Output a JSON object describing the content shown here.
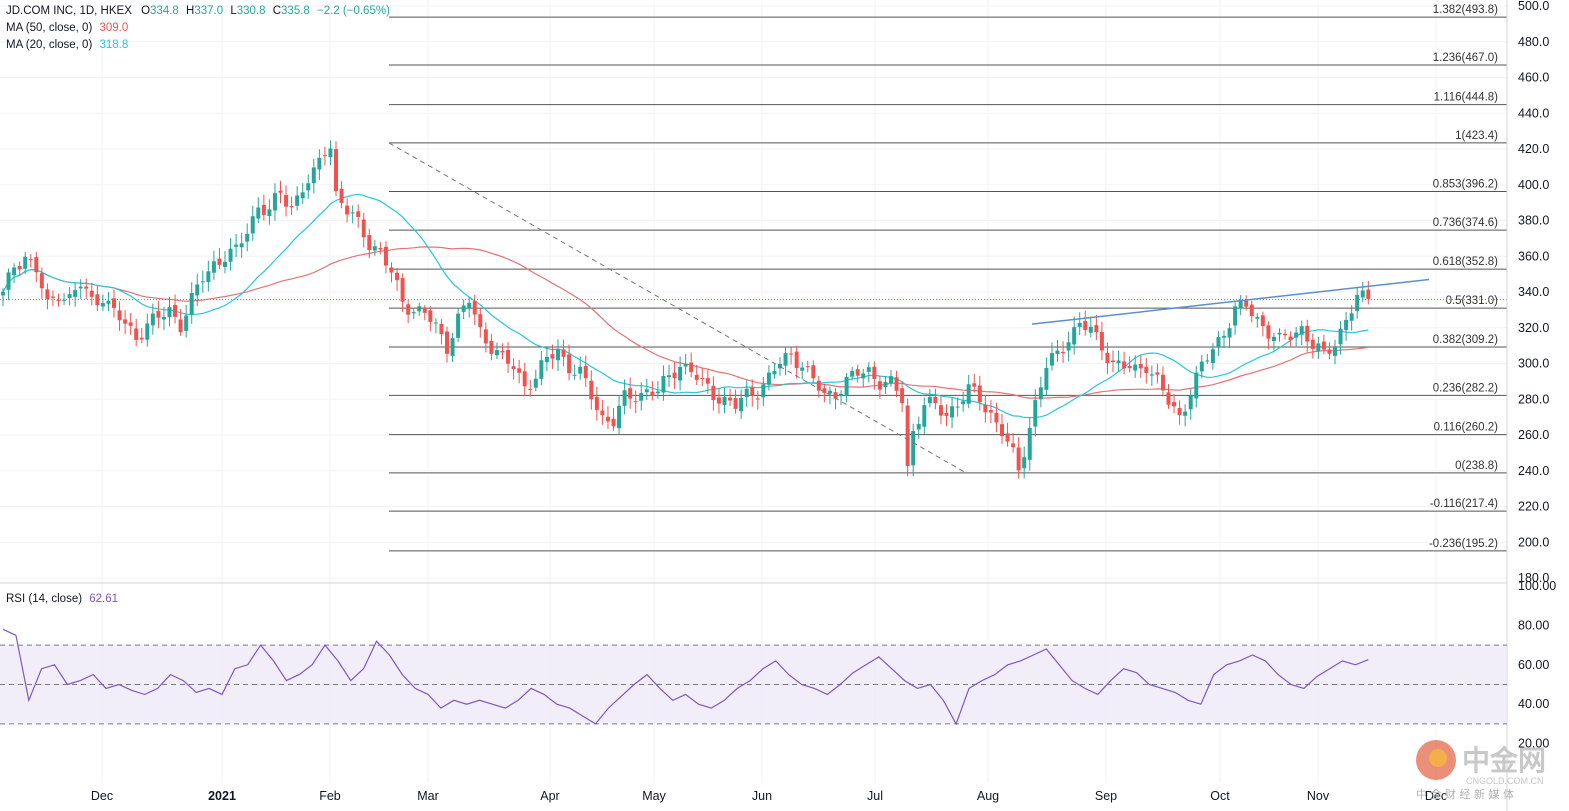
{
  "header": {
    "symbol": "JD.COM INC, 1D, HKEX",
    "ohlc": {
      "o_label": "O",
      "o": "334.8",
      "h_label": "H",
      "h": "337.0",
      "l_label": "L",
      "l": "330.8",
      "c_label": "C",
      "c": "335.8",
      "change": "−2.2 (−0.65%)"
    },
    "ma50": {
      "label": "MA (50, close, 0)",
      "value": "309.0"
    },
    "ma20": {
      "label": "MA (20, close, 0)",
      "value": "318.8"
    },
    "rsi": {
      "label": "RSI (14, close)",
      "value": "62.61"
    }
  },
  "colors": {
    "up": "#26a69a",
    "down": "#ef5350",
    "ma50": "#e57373",
    "ma20": "#26c6da",
    "rsi": "#7e57c2",
    "rsi_band": "#ede7f6",
    "trendline": "#5b8fd1",
    "fib": "#555555",
    "grid": "#f0f3fa",
    "dotted_price": "#5b8fd1"
  },
  "watermark": {
    "brand": "中金网",
    "site": "CNGOLD.COM.CN",
    "tagline": "中 金 财 经 新 媒 体"
  },
  "chart_data": [
    {
      "type": "candlestick",
      "title": "JD.COM INC, 1D, HKEX",
      "price_axis": {
        "ylim": [
          180,
          500
        ],
        "ticks": [
          "180.0",
          "200.0",
          "220.0",
          "240.0",
          "260.0",
          "280.0",
          "300.0",
          "320.0",
          "340.0",
          "360.0",
          "380.0",
          "400.0",
          "420.0",
          "440.0",
          "460.0",
          "480.0",
          "500.0"
        ]
      },
      "time_axis": {
        "labels": [
          "Dec",
          "2021",
          "Feb",
          "Mar",
          "Apr",
          "May",
          "Jun",
          "Jul",
          "Aug",
          "Sep",
          "Oct",
          "Nov",
          "Dec"
        ]
      },
      "fibonacci": [
        {
          "label": "1.382(493.8)",
          "value": 493.8
        },
        {
          "label": "1.236(467.0)",
          "value": 467.0
        },
        {
          "label": "1.116(444.8)",
          "value": 444.8
        },
        {
          "label": "1(423.4)",
          "value": 423.4
        },
        {
          "label": "0.853(396.2)",
          "value": 396.2
        },
        {
          "label": "0.736(374.6)",
          "value": 374.6
        },
        {
          "label": "0.618(352.8)",
          "value": 352.8
        },
        {
          "label": "0.5(331.0)",
          "value": 331.0
        },
        {
          "label": "0.382(309.2)",
          "value": 309.2
        },
        {
          "label": "0.236(282.2)",
          "value": 282.2
        },
        {
          "label": "0.116(260.2)",
          "value": 260.2
        },
        {
          "label": "0(238.8)",
          "value": 238.8
        },
        {
          "label": "-0.116(217.4)",
          "value": 217.4
        },
        {
          "label": "-0.236(195.2)",
          "value": 195.2
        }
      ],
      "last_close": 335.8,
      "high_swing": {
        "label": "Feb peak",
        "value": 423.4
      },
      "low_swing": {
        "label": "Jul low",
        "value": 238.8
      },
      "trendline": {
        "from_value": 322.0,
        "to_value": 347.0,
        "period": "mid Aug to Nov end"
      },
      "series": [
        {
          "name": "MA (50, close, 0)",
          "last": 309.0
        },
        {
          "name": "MA (20, close, 0)",
          "last": 318.8
        }
      ],
      "price_path": [
        [
          0,
          338
        ],
        [
          2,
          355
        ],
        [
          4,
          360
        ],
        [
          6,
          352
        ],
        [
          8,
          332
        ],
        [
          10,
          340
        ],
        [
          12,
          336
        ],
        [
          14,
          344
        ],
        [
          16,
          335
        ],
        [
          18,
          338
        ],
        [
          20,
          328
        ],
        [
          22,
          322
        ],
        [
          24,
          315
        ],
        [
          26,
          322
        ],
        [
          28,
          325
        ],
        [
          30,
          330
        ],
        [
          32,
          322
        ],
        [
          34,
          335
        ],
        [
          36,
          348
        ],
        [
          38,
          356
        ],
        [
          40,
          360
        ],
        [
          42,
          362
        ],
        [
          44,
          375
        ],
        [
          46,
          388
        ],
        [
          48,
          385
        ],
        [
          50,
          395
        ],
        [
          52,
          388
        ],
        [
          54,
          398
        ],
        [
          56,
          405
        ],
        [
          58,
          420
        ],
        [
          59,
          423
        ],
        [
          60,
          395
        ],
        [
          62,
          385
        ],
        [
          64,
          378
        ],
        [
          66,
          368
        ],
        [
          68,
          362
        ],
        [
          70,
          350
        ],
        [
          72,
          335
        ],
        [
          74,
          330
        ],
        [
          76,
          328
        ],
        [
          78,
          320
        ],
        [
          80,
          310
        ],
        [
          82,
          325
        ],
        [
          84,
          335
        ],
        [
          86,
          318
        ],
        [
          88,
          310
        ],
        [
          90,
          302
        ],
        [
          92,
          298
        ],
        [
          94,
          288
        ],
        [
          96,
          292
        ],
        [
          98,
          302
        ],
        [
          100,
          308
        ],
        [
          102,
          298
        ],
        [
          104,
          294
        ],
        [
          106,
          282
        ],
        [
          108,
          270
        ],
        [
          110,
          268
        ],
        [
          112,
          280
        ],
        [
          114,
          282
        ],
        [
          116,
          285
        ],
        [
          118,
          284
        ],
        [
          120,
          292
        ],
        [
          122,
          300
        ],
        [
          124,
          296
        ],
        [
          126,
          288
        ],
        [
          128,
          283
        ],
        [
          130,
          280
        ],
        [
          132,
          276
        ],
        [
          134,
          282
        ],
        [
          136,
          285
        ],
        [
          138,
          292
        ],
        [
          140,
          300
        ],
        [
          142,
          305
        ],
        [
          144,
          300
        ],
        [
          146,
          290
        ],
        [
          148,
          282
        ],
        [
          150,
          284
        ],
        [
          152,
          290
        ],
        [
          154,
          294
        ],
        [
          156,
          296
        ],
        [
          158,
          290
        ],
        [
          160,
          288
        ],
        [
          162,
          280
        ],
        [
          163,
          242
        ],
        [
          164,
          262
        ],
        [
          166,
          278
        ],
        [
          168,
          275
        ],
        [
          170,
          272
        ],
        [
          172,
          278
        ],
        [
          174,
          285
        ],
        [
          176,
          280
        ],
        [
          178,
          272
        ],
        [
          180,
          262
        ],
        [
          182,
          248
        ],
        [
          183,
          240
        ],
        [
          184,
          252
        ],
        [
          186,
          278
        ],
        [
          188,
          298
        ],
        [
          190,
          305
        ],
        [
          192,
          315
        ],
        [
          194,
          322
        ],
        [
          196,
          318
        ],
        [
          198,
          310
        ],
        [
          200,
          300
        ],
        [
          202,
          298
        ],
        [
          204,
          296
        ],
        [
          206,
          300
        ],
        [
          208,
          290
        ],
        [
          210,
          278
        ],
        [
          212,
          270
        ],
        [
          214,
          285
        ],
        [
          216,
          298
        ],
        [
          218,
          308
        ],
        [
          220,
          318
        ],
        [
          222,
          330
        ],
        [
          224,
          332
        ],
        [
          226,
          325
        ],
        [
          228,
          318
        ],
        [
          230,
          312
        ],
        [
          232,
          316
        ],
        [
          234,
          320
        ],
        [
          236,
          310
        ],
        [
          238,
          304
        ],
        [
          240,
          312
        ],
        [
          242,
          325
        ],
        [
          244,
          336
        ],
        [
          246,
          336
        ]
      ]
    },
    {
      "type": "line",
      "title": "RSI (14, close)",
      "ylim": [
        0,
        100
      ],
      "ticks": [
        "20.00",
        "40.00",
        "60.00",
        "80.00",
        "100.00"
      ],
      "band": [
        30,
        70
      ],
      "midline": 50,
      "series": [
        {
          "name": "RSI (14, close)",
          "last": 62.61,
          "values": [
            78,
            75,
            42,
            58,
            60,
            50,
            52,
            55,
            48,
            50,
            47,
            45,
            48,
            55,
            52,
            46,
            48,
            45,
            58,
            60,
            70,
            62,
            52,
            55,
            60,
            70,
            62,
            52,
            58,
            72,
            65,
            55,
            48,
            45,
            38,
            42,
            40,
            42,
            40,
            38,
            42,
            48,
            45,
            40,
            38,
            34,
            30,
            38,
            44,
            50,
            55,
            48,
            42,
            45,
            40,
            38,
            42,
            48,
            52,
            58,
            62,
            55,
            50,
            48,
            45,
            50,
            56,
            60,
            64,
            58,
            52,
            48,
            50,
            42,
            30,
            48,
            52,
            55,
            60,
            62,
            65,
            68,
            60,
            52,
            48,
            45,
            52,
            58,
            56,
            50,
            48,
            46,
            42,
            40,
            55,
            60,
            62,
            65,
            62,
            55,
            50,
            48,
            54,
            58,
            62,
            60,
            62.61
          ]
        }
      ]
    }
  ]
}
